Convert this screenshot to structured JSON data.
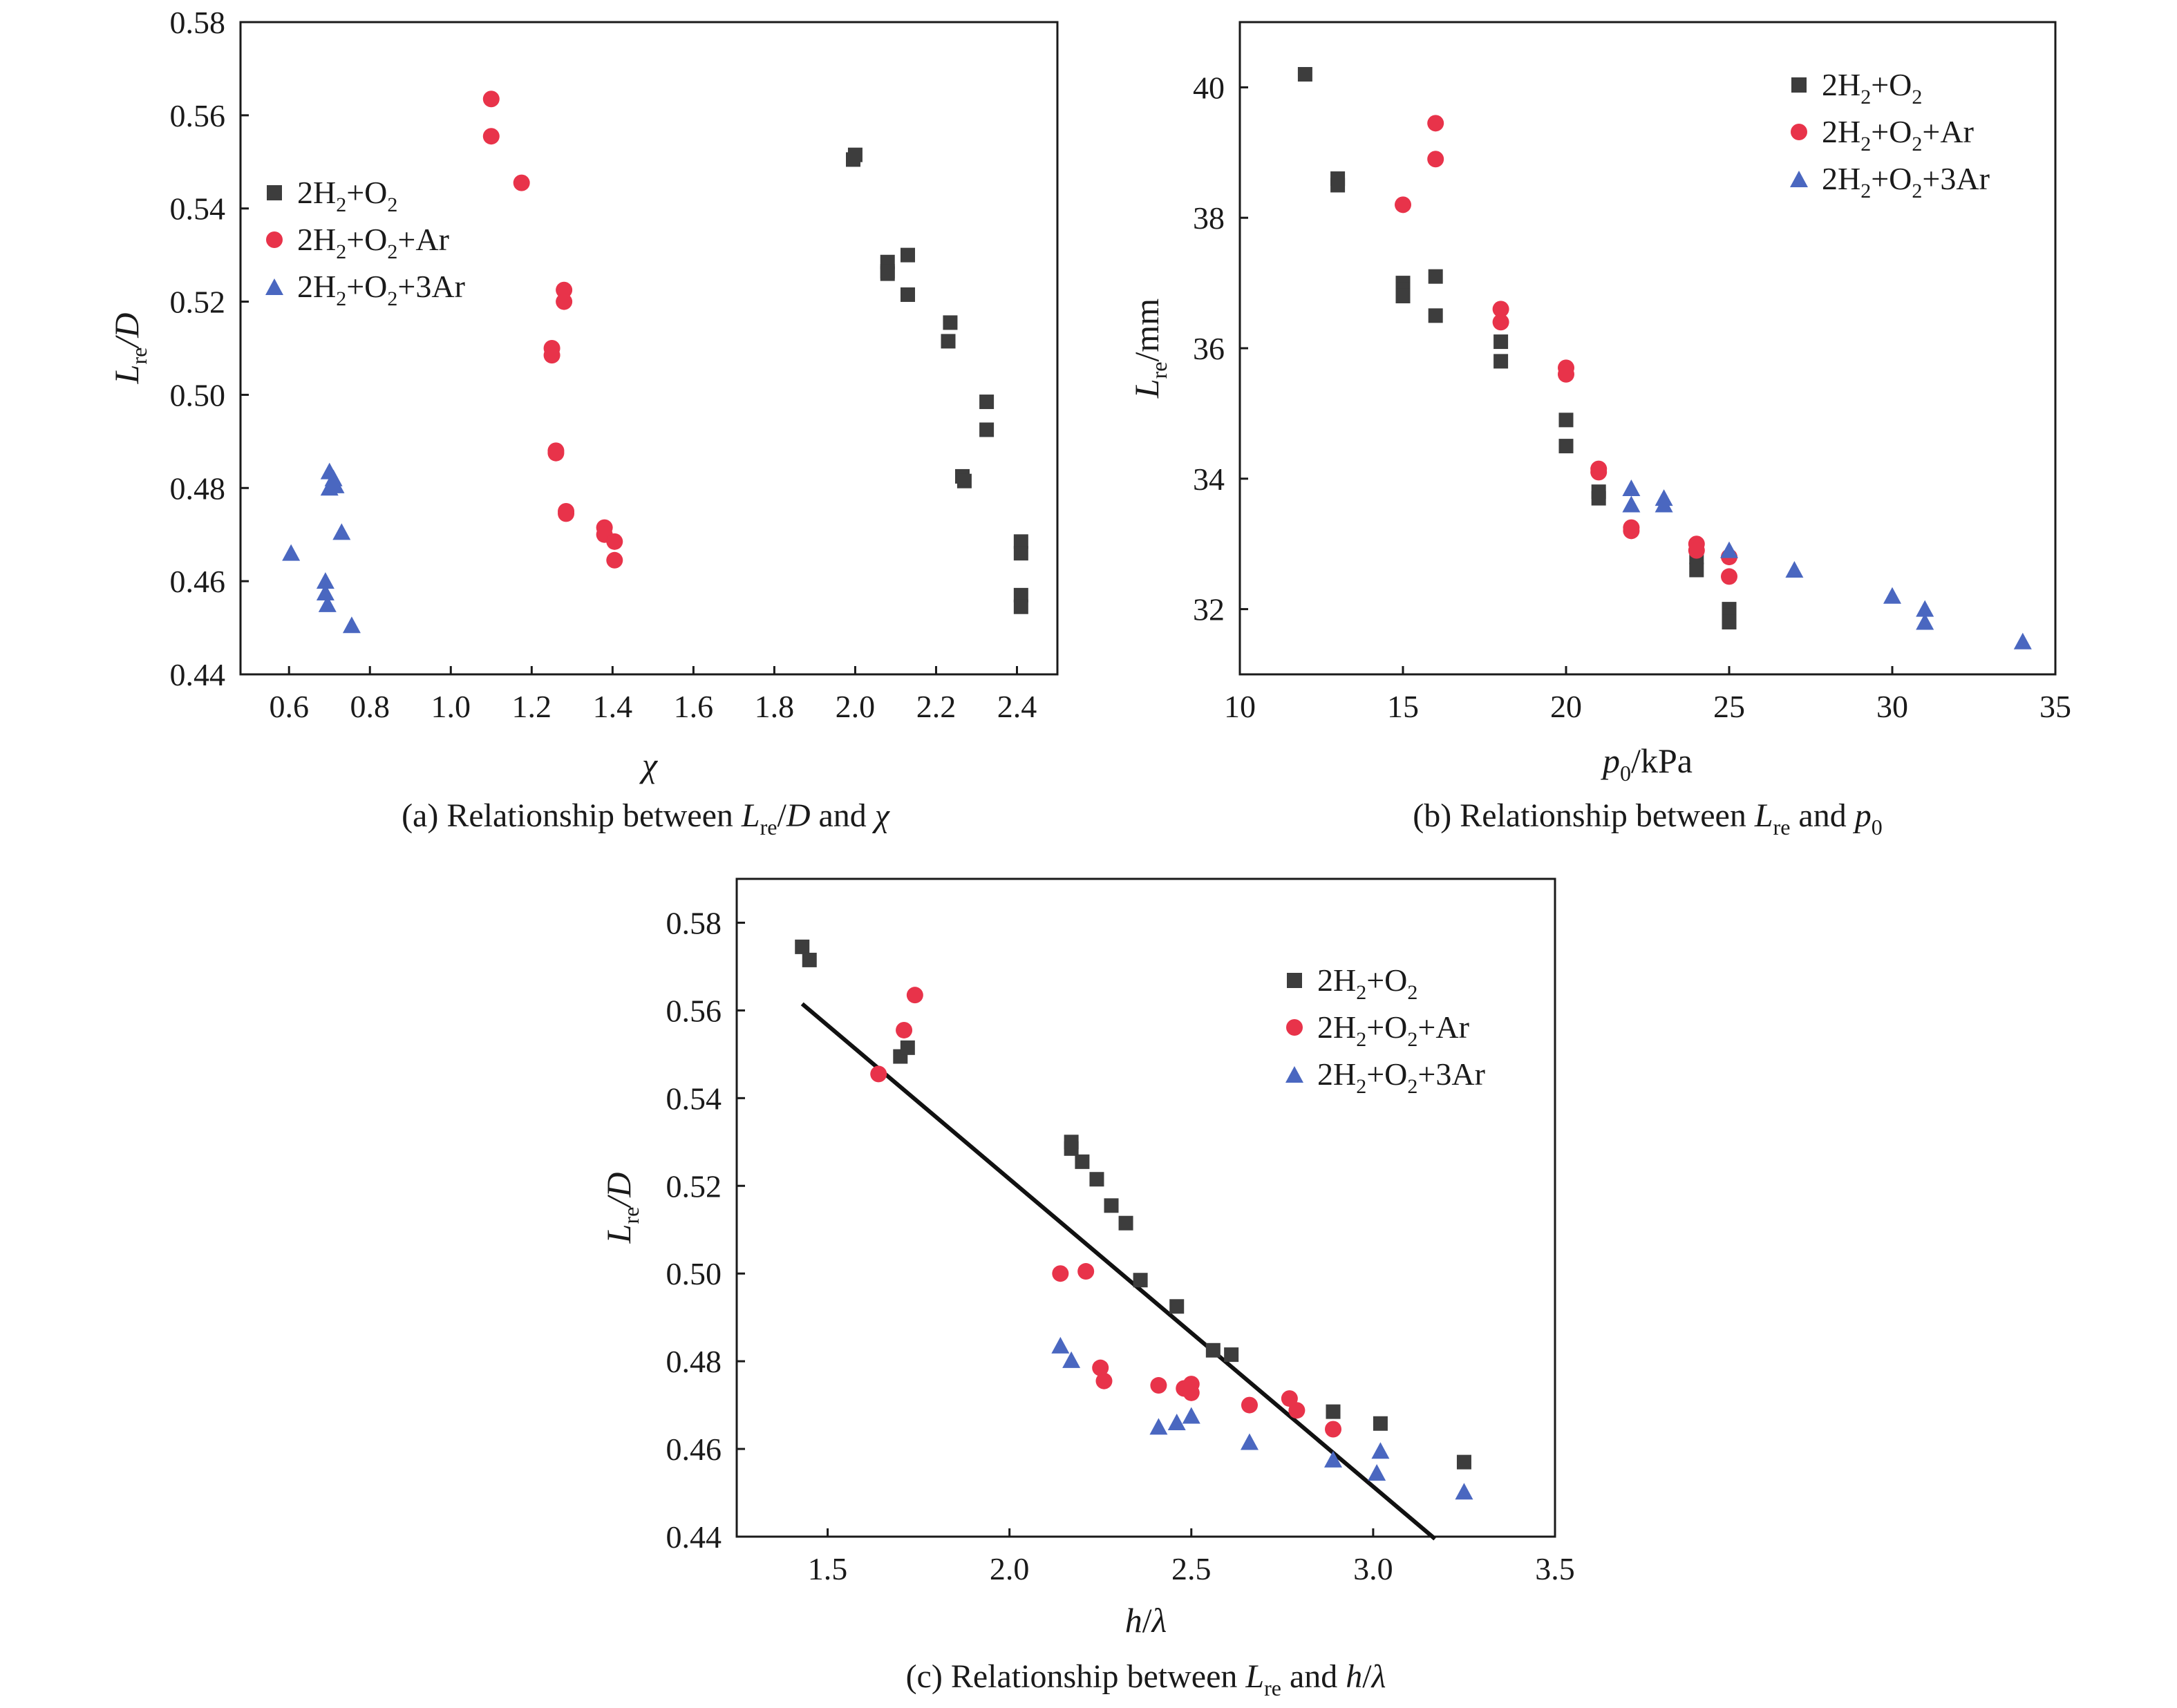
{
  "colors": {
    "sq": "#3d3d3d",
    "ci": "#e8334a",
    "tr": "#4a67c0",
    "line": "#111111",
    "frame": "#1a1a1a"
  },
  "legend": {
    "s1_base": "2H",
    "s1_sub1": "2",
    "s1_mid": "+O",
    "s1_sub2": "2",
    "s2_suffix": "+Ar",
    "s3_suffix": "+3Ar"
  },
  "panels": {
    "a": {
      "ylabel_main": "L",
      "ylabel_sub": "re",
      "ylabel_tail": "/D",
      "xlabel": "χ",
      "caption_pre": "(a) Relationship between ",
      "caption_L": "L",
      "caption_sub": "re",
      "caption_slash": "/",
      "caption_D": "D",
      "caption_and": " and ",
      "caption_x": "χ"
    },
    "b": {
      "ylabel_main": "L",
      "ylabel_sub": "re",
      "ylabel_tail": "/mm",
      "xlabel_main": "p",
      "xlabel_sub": "0",
      "xlabel_tail": "/kPa",
      "caption_pre": "(b) Relationship between ",
      "caption_L": "L",
      "caption_sub": "re",
      "caption_and": " and ",
      "caption_p": "p",
      "caption_psub": "0"
    },
    "c": {
      "ylabel_main": "L",
      "ylabel_sub": "re",
      "ylabel_tail": "/D",
      "xlabel_h": "h",
      "xlabel_slash": "/",
      "xlabel_l": "λ",
      "caption_pre": "(c) Relationship between ",
      "caption_L": "L",
      "caption_sub": "re",
      "caption_and": " and ",
      "caption_h": "h",
      "caption_slash": "/",
      "caption_l": "λ"
    }
  },
  "chart_data": [
    {
      "id": "a",
      "type": "scatter",
      "title": "(a) Relationship between Lre/D and χ",
      "xlabel": "χ",
      "ylabel": "Lre/D",
      "xlim": [
        0.48,
        2.5
      ],
      "ylim": [
        0.44,
        0.58
      ],
      "xticks": [
        "0.6",
        "0.8",
        "1.0",
        "1.2",
        "1.4",
        "1.6",
        "1.8",
        "2.0",
        "2.2",
        "2.4"
      ],
      "yticks": [
        "0.44",
        "0.46",
        "0.48",
        "0.50",
        "0.52",
        "0.54",
        "0.56",
        "0.58"
      ],
      "legend_position": "middle-left",
      "series": [
        {
          "name": "2H2+O2",
          "marker": "square",
          "x": [
            1.995,
            2.0,
            2.08,
            2.08,
            2.08,
            2.13,
            2.13,
            2.235,
            2.23,
            2.325,
            2.325,
            2.265,
            2.27,
            2.41,
            2.41,
            2.41,
            2.41
          ],
          "y": [
            0.5505,
            0.5515,
            0.5285,
            0.5265,
            0.526,
            0.53,
            0.5215,
            0.5155,
            0.5115,
            0.4985,
            0.4925,
            0.4825,
            0.4815,
            0.4685,
            0.466,
            0.457,
            0.4545
          ]
        },
        {
          "name": "2H2+O2+Ar",
          "marker": "circle",
          "x": [
            1.1,
            1.1,
            1.175,
            1.28,
            1.28,
            1.25,
            1.25,
            1.26,
            1.26,
            1.285,
            1.285,
            1.38,
            1.38,
            1.405,
            1.405
          ],
          "y": [
            0.5635,
            0.5555,
            0.5455,
            0.5225,
            0.52,
            0.51,
            0.5085,
            0.488,
            0.4875,
            0.475,
            0.4745,
            0.4715,
            0.47,
            0.4685,
            0.4645
          ]
        },
        {
          "name": "2H2+O2+3Ar",
          "marker": "triangle",
          "x": [
            0.605,
            0.7,
            0.71,
            0.7,
            0.715,
            0.73,
            0.69,
            0.69,
            0.695,
            0.755
          ],
          "y": [
            0.466,
            0.4835,
            0.482,
            0.48,
            0.4805,
            0.4705,
            0.46,
            0.4575,
            0.455,
            0.4505
          ]
        }
      ]
    },
    {
      "id": "b",
      "type": "scatter",
      "title": "(b) Relationship between Lre and p0",
      "xlabel": "p0/kPa",
      "ylabel": "Lre/mm",
      "xlim": [
        10,
        35
      ],
      "ylim": [
        31,
        41
      ],
      "xticks": [
        "10",
        "15",
        "20",
        "25",
        "30",
        "35"
      ],
      "yticks": [
        "32",
        "34",
        "36",
        "38",
        "40"
      ],
      "legend_position": "top-right",
      "series": [
        {
          "name": "2H2+O2",
          "marker": "square",
          "x": [
            12,
            13,
            13,
            15,
            15,
            15,
            16,
            16,
            18,
            18,
            20,
            20,
            21,
            21,
            24,
            24,
            25,
            25,
            25
          ],
          "y": [
            40.2,
            38.6,
            38.5,
            37.0,
            36.9,
            36.8,
            37.1,
            36.5,
            36.1,
            35.8,
            34.9,
            34.5,
            33.8,
            33.7,
            32.8,
            32.6,
            32.0,
            31.9,
            31.8
          ]
        },
        {
          "name": "2H2+O2+Ar",
          "marker": "circle",
          "x": [
            16,
            16,
            15,
            18,
            18,
            20,
            20,
            21,
            21,
            22,
            22,
            24,
            24,
            25,
            25
          ],
          "y": [
            39.45,
            38.9,
            38.2,
            36.6,
            36.4,
            35.7,
            35.6,
            34.15,
            34.1,
            33.25,
            33.2,
            33.0,
            32.9,
            32.8,
            32.5
          ]
        },
        {
          "name": "2H2+O2+3Ar",
          "marker": "triangle",
          "x": [
            22,
            22,
            23,
            23,
            25,
            27,
            30,
            31,
            31,
            34
          ],
          "y": [
            33.85,
            33.6,
            33.7,
            33.6,
            32.9,
            32.6,
            32.2,
            32.0,
            31.8,
            31.5
          ]
        }
      ]
    },
    {
      "id": "c",
      "type": "scatter",
      "title": "(c) Relationship between Lre and h/λ",
      "xlabel": "h/λ",
      "ylabel": "Lre/D",
      "xlim": [
        1.25,
        3.5
      ],
      "ylim": [
        0.44,
        0.59
      ],
      "xticks": [
        "1.5",
        "2.0",
        "2.5",
        "3.0",
        "3.5"
      ],
      "yticks": [
        "0.44",
        "0.46",
        "0.48",
        "0.50",
        "0.52",
        "0.54",
        "0.56",
        "0.58"
      ],
      "legend_position": "top-right",
      "fit_line": {
        "x": [
          1.43,
          3.17
        ],
        "y": [
          0.5615,
          0.4395
        ]
      },
      "series": [
        {
          "name": "2H2+O2",
          "marker": "square",
          "x": [
            1.43,
            1.45,
            1.7,
            1.72,
            2.17,
            2.17,
            2.2,
            2.24,
            2.28,
            2.32,
            2.36,
            2.46,
            2.56,
            2.61,
            2.89,
            3.02,
            3.25
          ],
          "y": [
            0.5745,
            0.5715,
            0.5495,
            0.5515,
            0.53,
            0.5285,
            0.5255,
            0.5215,
            0.5155,
            0.5115,
            0.4985,
            0.4925,
            0.4825,
            0.4815,
            0.4685,
            0.4658,
            0.457
          ]
        },
        {
          "name": "2H2+O2+Ar",
          "marker": "circle",
          "x": [
            1.64,
            1.71,
            1.74,
            2.14,
            2.21,
            2.25,
            2.26,
            2.41,
            2.48,
            2.5,
            2.5,
            2.66,
            2.77,
            2.79,
            2.89
          ],
          "y": [
            0.5455,
            0.5555,
            0.5635,
            0.5,
            0.5005,
            0.4785,
            0.4755,
            0.4745,
            0.4738,
            0.4748,
            0.4728,
            0.47,
            0.4715,
            0.4688,
            0.4645
          ]
        },
        {
          "name": "2H2+O2+3Ar",
          "marker": "triangle",
          "x": [
            2.14,
            2.17,
            2.41,
            2.46,
            2.5,
            2.66,
            2.89,
            3.01,
            3.02,
            3.25
          ],
          "y": [
            0.4835,
            0.4802,
            0.465,
            0.466,
            0.4675,
            0.4615,
            0.4575,
            0.4545,
            0.4595,
            0.4502
          ]
        }
      ]
    }
  ]
}
